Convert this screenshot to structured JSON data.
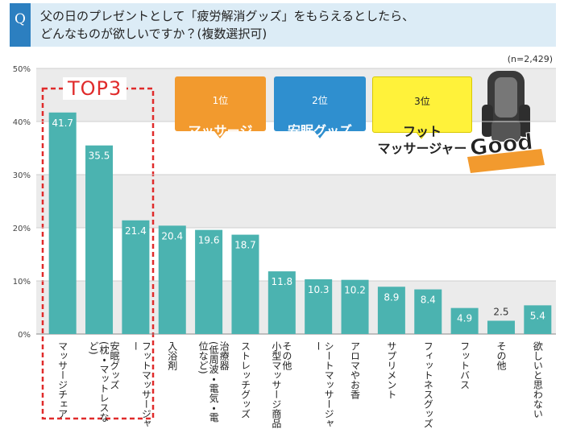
{
  "header": {
    "q": "Q",
    "question": "父の日のプレゼントとして「疲労解消グッズ」をもらえるとしたら、\nどんなものが欲しいですか？(複数選択可)"
  },
  "note": "(n=2,429)",
  "top3_label": "TOP3",
  "callouts": [
    {
      "rank": "1位",
      "name": "マッサージ\nチェア"
    },
    {
      "rank": "2位",
      "name": "安眠グッズ",
      "sub": "(枕・マットレスなど)"
    },
    {
      "rank": "3位",
      "name": "フット\nマッサージャー"
    }
  ],
  "badge": "Good",
  "chart_data": {
    "type": "bar",
    "categories": [
      "マッサージチェア",
      "安眠グッズ\n(枕・マットレスなど)",
      "フットマッサージャー",
      "入浴剤",
      "治療器\n(低周波・電気・電位など)",
      "ストレッチグッズ",
      "その他\n小型マッサージ商品",
      "シートマッサージャー",
      "アロマやお香",
      "サプリメント",
      "フィットネスグッズ",
      "フットバス",
      "その他",
      "欲しいと思わない"
    ],
    "values": [
      41.7,
      35.5,
      21.4,
      20.4,
      19.6,
      18.7,
      11.8,
      10.3,
      10.2,
      8.9,
      8.4,
      4.9,
      2.5,
      5.4
    ],
    "color": "#4bb3b0",
    "ylim": [
      0,
      50
    ],
    "yticks": [
      {
        "value": 0,
        "label": "0%"
      },
      {
        "value": 10,
        "label": "10%"
      },
      {
        "value": 20,
        "label": "20%"
      },
      {
        "value": 30,
        "label": "30%"
      },
      {
        "value": 40,
        "label": "40%"
      },
      {
        "value": 50,
        "label": "50%"
      }
    ],
    "grid": true
  }
}
